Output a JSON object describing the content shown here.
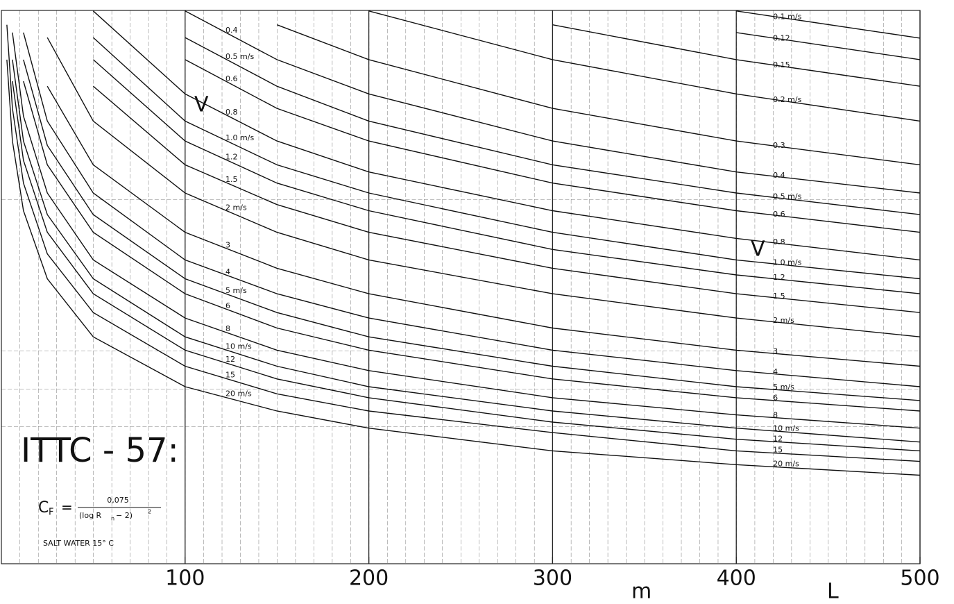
{
  "chart_data": {
    "type": "line",
    "title": "ITTC - 57:",
    "formula": {
      "lhs": "C",
      "lhs_sub": "F",
      "equals": "=",
      "numerator": "0,075",
      "denominator": "(log R",
      "denominator_sub": "n",
      "denominator_tail": " − 2)",
      "denominator_sup": "2"
    },
    "note": "SALT WATER 15° C",
    "y_label": "V",
    "x_unit": "m",
    "x_label": "L",
    "xlim": [
      0,
      500
    ],
    "ylim": [
      0,
      100
    ],
    "xticks": [
      100,
      200,
      300,
      400,
      500
    ],
    "grid": true,
    "color": "#111111",
    "x": [
      3,
      6,
      12,
      25,
      50,
      100,
      150,
      200,
      300,
      400,
      500
    ],
    "series": [
      {
        "name": "0.1 m/s",
        "values": [
          null,
          null,
          null,
          null,
          null,
          null,
          null,
          null,
          null,
          99.9,
          95
        ]
      },
      {
        "name": "0.12",
        "values": [
          null,
          null,
          null,
          null,
          null,
          null,
          null,
          null,
          null,
          96,
          91.1
        ]
      },
      {
        "name": "0.15",
        "values": [
          null,
          null,
          null,
          null,
          null,
          null,
          null,
          null,
          97.4,
          91.1,
          86.3
        ]
      },
      {
        "name": "0.2 m/s",
        "values": [
          null,
          null,
          null,
          null,
          null,
          null,
          null,
          99.9,
          91.1,
          84.9,
          80
        ]
      },
      {
        "name": "0.3",
        "values": [
          null,
          null,
          null,
          null,
          null,
          null,
          97.4,
          91.1,
          82.3,
          76.4,
          72.1
        ]
      },
      {
        "name": "0.4",
        "values": [
          null,
          null,
          null,
          null,
          null,
          99.9,
          91.1,
          84.9,
          76.4,
          70.8,
          67.0
        ]
      },
      {
        "name": "0.5 m/s",
        "values": [
          null,
          null,
          null,
          null,
          null,
          95.1,
          86.3,
          80,
          72.1,
          67.0,
          63.1
        ]
      },
      {
        "name": "0.6",
        "values": [
          null,
          null,
          null,
          null,
          null,
          91.1,
          82.3,
          76.4,
          68.8,
          63.8,
          59.9
        ]
      },
      {
        "name": "0.8",
        "values": [
          null,
          null,
          null,
          null,
          99.9,
          84.9,
          76.4,
          70.8,
          63.8,
          58.8,
          54.9
        ]
      },
      {
        "name": "1.0 m/s",
        "values": [
          null,
          null,
          null,
          null,
          95.1,
          80,
          72.1,
          67.0,
          59.9,
          54.9,
          51.5
        ]
      },
      {
        "name": "1.2",
        "values": [
          null,
          null,
          null,
          null,
          91.1,
          76.4,
          68.8,
          63.8,
          56.8,
          52.2,
          48.8
        ]
      },
      {
        "name": "1.5",
        "values": [
          null,
          null,
          null,
          null,
          86.3,
          72.1,
          64.9,
          59.9,
          53.4,
          48.8,
          45.4
        ]
      },
      {
        "name": "2 m/s",
        "values": [
          null,
          null,
          null,
          95.1,
          80,
          67.0,
          59.9,
          54.9,
          48.8,
          44.4,
          41
        ]
      },
      {
        "name": "3",
        "values": [
          null,
          null,
          null,
          86.3,
          72.1,
          59.9,
          53.4,
          48.8,
          42.6,
          38.6,
          35.7
        ]
      },
      {
        "name": "4",
        "values": [
          null,
          null,
          96,
          80,
          67.0,
          54.9,
          48.8,
          44.4,
          38.6,
          34.9,
          32.0
        ]
      },
      {
        "name": "5 m/s",
        "values": [
          null,
          null,
          91.1,
          75.6,
          63.1,
          51.5,
          45.4,
          41,
          35.7,
          32.0,
          29.5
        ]
      },
      {
        "name": "6",
        "values": [
          null,
          null,
          87.2,
          72.1,
          59.9,
          48.8,
          42.6,
          38.6,
          33.4,
          30.0,
          27.6
        ]
      },
      {
        "name": "8",
        "values": [
          null,
          96,
          80.9,
          67.0,
          54.9,
          44.4,
          38.6,
          34.9,
          30.0,
          26.9,
          24.5
        ]
      },
      {
        "name": "10 m/s",
        "values": [
          null,
          91.1,
          76.4,
          63.1,
          51.5,
          41,
          35.7,
          32.0,
          27.6,
          24.5,
          22.0
        ]
      },
      {
        "name": "12",
        "values": [
          null,
          87.2,
          72.9,
          59.9,
          48.8,
          38.6,
          33.4,
          30.0,
          25.6,
          22.5,
          20.4
        ]
      },
      {
        "name": "15",
        "values": [
          97.4,
          82.3,
          68.8,
          56.0,
          45.4,
          35.7,
          30.7,
          27.6,
          23.7,
          20.4,
          18.5
        ]
      },
      {
        "name": "20 m/s",
        "values": [
          91.1,
          76.4,
          63.8,
          51.5,
          41,
          32.0,
          27.6,
          24.5,
          20.4,
          17.9,
          16
        ]
      }
    ]
  }
}
